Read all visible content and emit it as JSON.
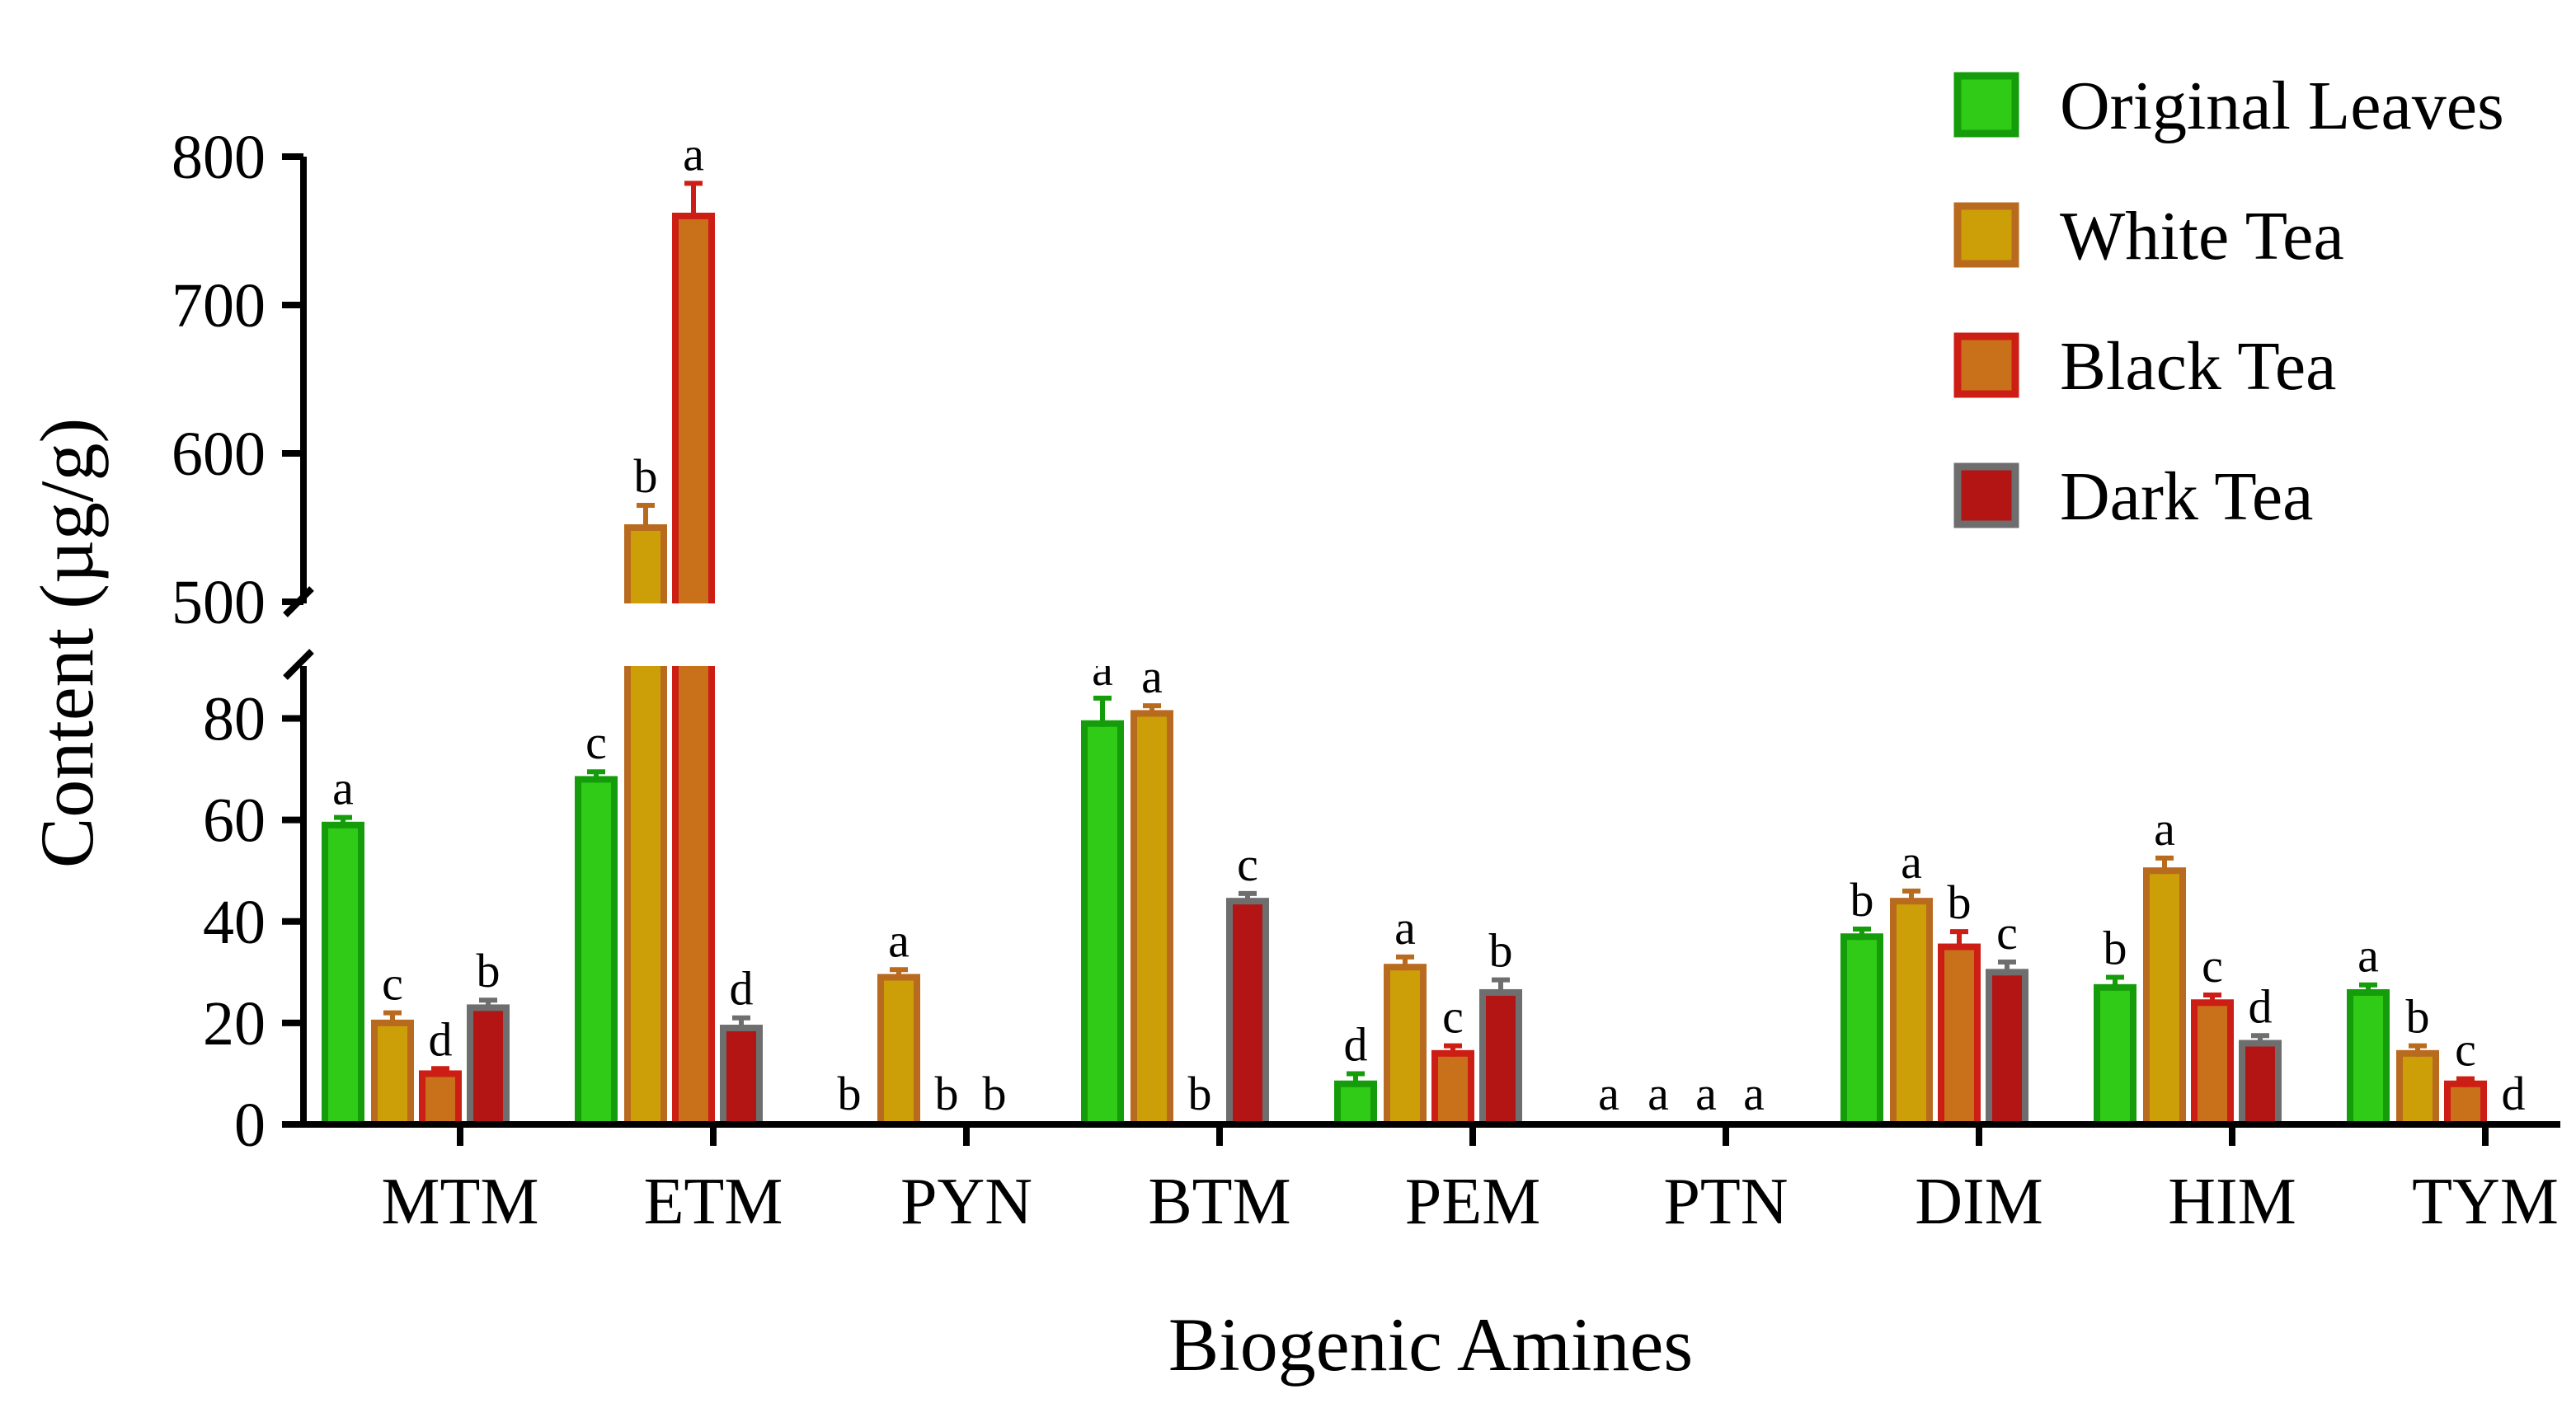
{
  "chart_data": {
    "type": "bar",
    "title": "",
    "xlabel": "Biogenic Amines",
    "ylabel": "Content (µg/g)",
    "y_axis_break": [
      90,
      500
    ],
    "ylim_lower": [
      0,
      90
    ],
    "ylim_upper": [
      500,
      800
    ],
    "yticks_lower": [
      "0",
      "20",
      "40",
      "60",
      "80"
    ],
    "yticks_upper": [
      "500",
      "600",
      "700",
      "800"
    ],
    "legend_position": "top-right",
    "categories": [
      "MTM",
      "ETM",
      "PYN",
      "BTM",
      "PEM",
      "PTN",
      "DIM",
      "HIM",
      "TYM"
    ],
    "series": [
      {
        "name": "Original Leaves",
        "fill": "#2fcb16",
        "edge": "#159c0b",
        "values": [
          59,
          68,
          0,
          79,
          8,
          0,
          37,
          27,
          26
        ],
        "errors": [
          1.5,
          1.5,
          0,
          5,
          2,
          0,
          1.5,
          2,
          1.5
        ],
        "letters": [
          "a",
          "c",
          "b",
          "a",
          "d",
          "a",
          "b",
          "b",
          "a"
        ]
      },
      {
        "name": "White Tea",
        "fill": "#cc9f08",
        "edge": "#b86a1e",
        "values": [
          20,
          550,
          29,
          81,
          31,
          0,
          44,
          50,
          14
        ],
        "errors": [
          2,
          15,
          1.5,
          1.5,
          2,
          0,
          2,
          2.5,
          1.5
        ],
        "letters": [
          "c",
          "b",
          "a",
          "a",
          "a",
          "a",
          "a",
          "a",
          "b"
        ]
      },
      {
        "name": "Black Tea",
        "fill": "#c8701a",
        "edge": "#cc1e14",
        "values": [
          10,
          760,
          0,
          0,
          14,
          0,
          35,
          24,
          8
        ],
        "errors": [
          1,
          22,
          0,
          0,
          1.5,
          0,
          3,
          1.5,
          1
        ],
        "letters": [
          "d",
          "a",
          "b",
          "b",
          "c",
          "a",
          "b",
          "c",
          "c"
        ]
      },
      {
        "name": "Dark Tea",
        "fill": "#b31414",
        "edge": "#6e6e6e",
        "values": [
          23,
          19,
          0,
          44,
          26,
          0,
          30,
          16,
          0
        ],
        "errors": [
          1.5,
          2,
          0,
          1.5,
          2.5,
          0,
          2,
          1.5,
          0
        ],
        "letters": [
          "b",
          "d",
          "b",
          "c",
          "b",
          "a",
          "c",
          "d",
          "d"
        ]
      }
    ]
  }
}
